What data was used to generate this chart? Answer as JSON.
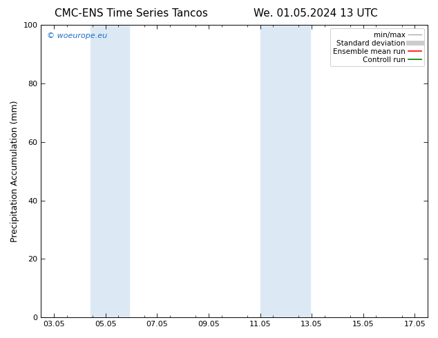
{
  "title_left": "CMC-ENS Time Series Tancos",
  "title_right": "We. 01.05.2024 13 UTC",
  "ylabel": "Precipitation Accumulation (mm)",
  "ylim": [
    0,
    100
  ],
  "yticks": [
    0,
    20,
    40,
    60,
    80,
    100
  ],
  "xtick_labels": [
    "03.05",
    "05.05",
    "07.05",
    "09.05",
    "11.05",
    "13.05",
    "15.05",
    "17.05"
  ],
  "xtick_positions": [
    3,
    5,
    7,
    9,
    11,
    13,
    15,
    17
  ],
  "xlim": [
    2.5,
    17.5
  ],
  "shaded_regions": [
    {
      "x_start": 4.42,
      "x_end": 5.92,
      "color": "#dce9f5"
    },
    {
      "x_start": 11.0,
      "x_end": 12.95,
      "color": "#dce9f5"
    }
  ],
  "watermark_text": "© woeurope.eu",
  "watermark_color": "#1a6ec4",
  "background_color": "#ffffff",
  "legend_items": [
    {
      "label": "min/max",
      "color": "#aaaaaa",
      "lw": 1.0,
      "style": "solid"
    },
    {
      "label": "Standard deviation",
      "color": "#cccccc",
      "lw": 5,
      "style": "solid"
    },
    {
      "label": "Ensemble mean run",
      "color": "#ff0000",
      "lw": 1.2,
      "style": "solid"
    },
    {
      "label": "Controll run",
      "color": "#008000",
      "lw": 1.2,
      "style": "solid"
    }
  ],
  "title_fontsize": 11,
  "axis_label_fontsize": 9,
  "tick_fontsize": 8,
  "legend_fontsize": 7.5,
  "watermark_fontsize": 8
}
